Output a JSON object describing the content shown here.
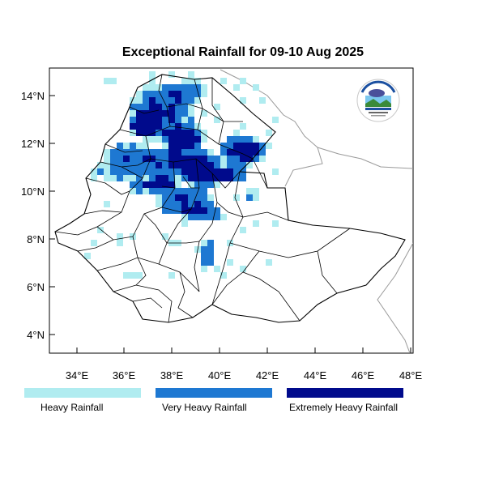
{
  "title": "Exceptional Rainfall for 09-10 Aug 2025",
  "axes": {
    "lon_ticks": [
      "34°E",
      "36°E",
      "38°E",
      "40°E",
      "42°E",
      "44°E",
      "46°E",
      "48°E"
    ],
    "lat_ticks": [
      "14°N",
      "12°N",
      "10°N",
      "8°N",
      "6°N",
      "4°N"
    ],
    "lon_range": [
      32.8,
      48.2
    ],
    "lat_range": [
      3.2,
      15.0
    ]
  },
  "categories": [
    {
      "label": "Heavy Rainfall",
      "color": "#b0ecf0"
    },
    {
      "label": "Very Heavy Rainfall",
      "color": "#1e78d2"
    },
    {
      "label": "Extremely Heavy Rainfall",
      "color": "#000a8c"
    }
  ],
  "logo": {
    "name": "ethiopian-meteorology-institute-logo"
  }
}
